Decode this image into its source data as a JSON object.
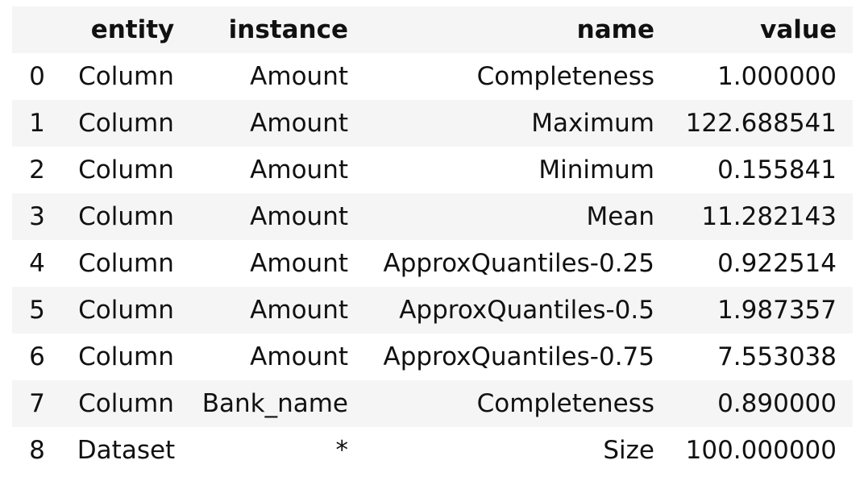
{
  "table": {
    "columns": {
      "index": "",
      "entity": "entity",
      "instance": "instance",
      "name": "name",
      "value": "value"
    },
    "rows": [
      {
        "index": "0",
        "entity": "Column",
        "instance": "Amount",
        "name": "Completeness",
        "value": "1.000000"
      },
      {
        "index": "1",
        "entity": "Column",
        "instance": "Amount",
        "name": "Maximum",
        "value": "122.688541"
      },
      {
        "index": "2",
        "entity": "Column",
        "instance": "Amount",
        "name": "Minimum",
        "value": "0.155841"
      },
      {
        "index": "3",
        "entity": "Column",
        "instance": "Amount",
        "name": "Mean",
        "value": "11.282143"
      },
      {
        "index": "4",
        "entity": "Column",
        "instance": "Amount",
        "name": "ApproxQuantiles-0.25",
        "value": "0.922514"
      },
      {
        "index": "5",
        "entity": "Column",
        "instance": "Amount",
        "name": "ApproxQuantiles-0.5",
        "value": "1.987357"
      },
      {
        "index": "6",
        "entity": "Column",
        "instance": "Amount",
        "name": "ApproxQuantiles-0.75",
        "value": "7.553038"
      },
      {
        "index": "7",
        "entity": "Column",
        "instance": "Bank_name",
        "name": "Completeness",
        "value": "0.890000"
      },
      {
        "index": "8",
        "entity": "Dataset",
        "instance": "*",
        "name": "Size",
        "value": "100.000000"
      }
    ]
  },
  "colors": {
    "stripe": "#f5f5f5",
    "background": "#ffffff",
    "text": "#111111"
  }
}
